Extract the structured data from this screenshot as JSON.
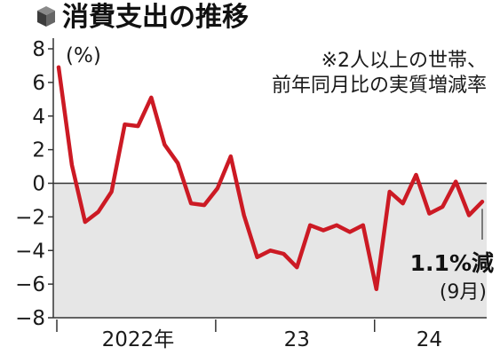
{
  "chart_data": {
    "type": "line",
    "title": "消費支出の推移",
    "unit_label": "(%)",
    "note_lines": [
      "※2人以上の世帯、",
      "前年同月比の実質増減率"
    ],
    "ylim": [
      -8,
      8
    ],
    "y_ticks": [
      8,
      6,
      4,
      2,
      0,
      -2,
      -4,
      -6,
      -8
    ],
    "grid": false,
    "shade_below_zero": true,
    "x_start": "2022-01",
    "x_end": "2024-09",
    "x_tick_labels": [
      {
        "label": "2022年",
        "month": "2022-07"
      },
      {
        "label": "23",
        "month": "2023-07"
      },
      {
        "label": "24",
        "month": "2024-05"
      }
    ],
    "x_year_boundaries": [
      "2022-01",
      "2023-01",
      "2024-01"
    ],
    "series": [
      {
        "color": "#cc1a24",
        "points": [
          {
            "x": "2022-01",
            "y": 6.9
          },
          {
            "x": "2022-02",
            "y": 1.1
          },
          {
            "x": "2022-03",
            "y": -2.3
          },
          {
            "x": "2022-04",
            "y": -1.7
          },
          {
            "x": "2022-05",
            "y": -0.5
          },
          {
            "x": "2022-06",
            "y": 3.5
          },
          {
            "x": "2022-07",
            "y": 3.4
          },
          {
            "x": "2022-08",
            "y": 5.1
          },
          {
            "x": "2022-09",
            "y": 2.3
          },
          {
            "x": "2022-10",
            "y": 1.2
          },
          {
            "x": "2022-11",
            "y": -1.2
          },
          {
            "x": "2022-12",
            "y": -1.3
          },
          {
            "x": "2023-01",
            "y": -0.3
          },
          {
            "x": "2023-02",
            "y": 1.6
          },
          {
            "x": "2023-03",
            "y": -1.9
          },
          {
            "x": "2023-04",
            "y": -4.4
          },
          {
            "x": "2023-05",
            "y": -4.0
          },
          {
            "x": "2023-06",
            "y": -4.2
          },
          {
            "x": "2023-07",
            "y": -5.0
          },
          {
            "x": "2023-08",
            "y": -2.5
          },
          {
            "x": "2023-09",
            "y": -2.8
          },
          {
            "x": "2023-10",
            "y": -2.5
          },
          {
            "x": "2023-11",
            "y": -2.9
          },
          {
            "x": "2023-12",
            "y": -2.5
          },
          {
            "x": "2024-01",
            "y": -6.3
          },
          {
            "x": "2024-02",
            "y": -0.5
          },
          {
            "x": "2024-03",
            "y": -1.2
          },
          {
            "x": "2024-04",
            "y": 0.5
          },
          {
            "x": "2024-05",
            "y": -1.8
          },
          {
            "x": "2024-06",
            "y": -1.4
          },
          {
            "x": "2024-07",
            "y": 0.1
          },
          {
            "x": "2024-08",
            "y": -1.9
          },
          {
            "x": "2024-09",
            "y": -1.1
          }
        ]
      }
    ],
    "annotation": {
      "x": "2024-09",
      "text": "1.1%減",
      "subtext": "(9月)"
    }
  },
  "colors": {
    "line": "#cc1a24",
    "shade": "#e6e6e6",
    "text": "#1a1a1a",
    "icon": "#555555"
  },
  "icon": "cube-icon"
}
